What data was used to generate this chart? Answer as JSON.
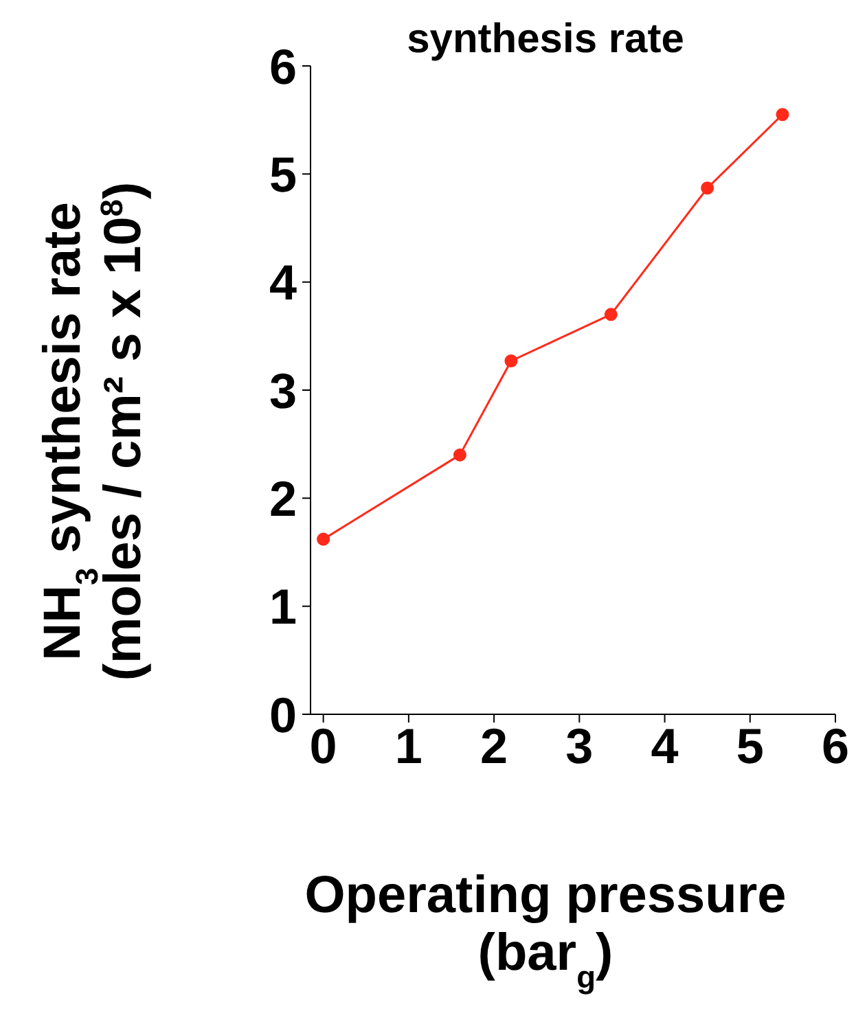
{
  "chart_data": {
    "type": "line",
    "title": "synthesis rate",
    "xlabel": "Operating pressure\n(bar$_{g}$)",
    "ylabel": "NH$_{3}$ synthesis rate\n(moles / cm² s x 10$^{8}$)",
    "x": [
      0,
      1.6,
      2.2,
      3.37,
      4.5,
      5.38
    ],
    "series": [
      {
        "color": "#ff2a1a",
        "values": [
          1.62,
          2.4,
          3.27,
          3.7,
          4.87,
          5.55
        ]
      }
    ],
    "xlim": [
      -0.15,
      6
    ],
    "ylim": [
      0,
      6
    ],
    "xticks": [
      0,
      1,
      2,
      3,
      4,
      5,
      6
    ],
    "yticks": [
      0,
      1,
      2,
      3,
      4,
      5,
      6
    ],
    "marker": "circle",
    "line_style": "solid",
    "grid": false,
    "legend": false
  }
}
